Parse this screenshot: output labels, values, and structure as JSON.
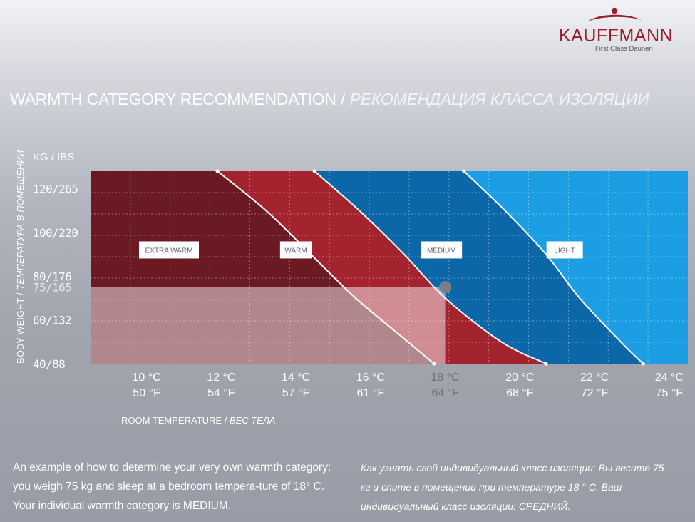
{
  "brand": {
    "name": "KAUFFMANN",
    "tagline": "First Class Daunen",
    "color": "#9b1d2b"
  },
  "heading": {
    "en": "WARMTH CATEGORY RECOMMENDATION /",
    "ru": "РЕКОМЕНДАЦИЯ КЛАССА ИЗОЛЯЦИИ"
  },
  "y_axis_title": {
    "en": "BODY WEIGHT /",
    "ru": "ТЕМПЕРАТУРА В ПОМЕЩЕНИИ"
  },
  "x_axis_title": {
    "en": "ROOM TEMPERATURE /",
    "ru": "ВЕС ТЕЛА"
  },
  "captions": {
    "en": "An example of how to determine your very own warmth category: you weigh 75 kg and sleep at a bedroom tempera-ture of 18° C. Your individual warmth category is MEDIUM.",
    "ru": "Как узнать свой индивидуальный класс изоляции: Вы весите 75 кг и спите в помещении при температуре 18 ° C. Ваш индивидуальный класс изоляции: СРЕДНИЙ."
  },
  "chart_data": {
    "type": "area",
    "x_unit": "°C",
    "y_unit": "kg",
    "y_axis_unit_label": "KG / IBS",
    "xlim": [
      8.5,
      24.5
    ],
    "ylim": [
      40,
      128
    ],
    "x_ticks": [
      {
        "value": 10,
        "c": "10 °C",
        "f": "50 °F"
      },
      {
        "value": 12,
        "c": "12 °C",
        "f": "54 °F"
      },
      {
        "value": 14,
        "c": "14 °C",
        "f": "57 °F"
      },
      {
        "value": 16,
        "c": "16 °C",
        "f": "61 °F"
      },
      {
        "value": 18,
        "c": "18 °C",
        "f": "64 °F",
        "highlight": true
      },
      {
        "value": 20,
        "c": "20 °C",
        "f": "68 °F"
      },
      {
        "value": 22,
        "c": "22 °C",
        "f": "72 °F"
      },
      {
        "value": 24,
        "c": "24 °C",
        "f": "75 °F"
      }
    ],
    "y_ticks": [
      {
        "value": 40,
        "label": "40/88"
      },
      {
        "value": 60,
        "label": "60/132"
      },
      {
        "value": 75,
        "label": "75/165",
        "highlight": true
      },
      {
        "value": 80,
        "label": "80/176"
      },
      {
        "value": 100,
        "label": "100/220"
      },
      {
        "value": 120,
        "label": "120/265"
      }
    ],
    "categories": [
      {
        "name": "EXTRA WARM",
        "color": "#6b1a23",
        "label_x": 10.6,
        "label_y": 92
      },
      {
        "name": "WARM",
        "color": "#a3242f",
        "label_x": 14.0,
        "label_y": 92
      },
      {
        "name": "MEDIUM",
        "color": "#0b67a8",
        "label_x": 17.9,
        "label_y": 92
      },
      {
        "name": "LIGHT",
        "color": "#1b9ee3",
        "label_x": 21.2,
        "label_y": 92
      }
    ],
    "boundaries": [
      {
        "between": "EXTRA WARM / WARM",
        "points": [
          [
            11.9,
            128
          ],
          [
            13.2,
            110
          ],
          [
            14.4,
            90
          ],
          [
            15.6,
            70
          ],
          [
            17.0,
            50
          ],
          [
            17.7,
            40
          ]
        ]
      },
      {
        "between": "WARM / MEDIUM",
        "points": [
          [
            14.5,
            128
          ],
          [
            15.7,
            110
          ],
          [
            16.9,
            90
          ],
          [
            18.0,
            70
          ],
          [
            19.5,
            50
          ],
          [
            20.7,
            40
          ]
        ]
      },
      {
        "between": "MEDIUM / LIGHT",
        "points": [
          [
            18.5,
            128
          ],
          [
            19.6,
            110
          ],
          [
            20.7,
            90
          ],
          [
            21.6,
            70
          ],
          [
            22.7,
            50
          ],
          [
            23.3,
            40
          ]
        ]
      }
    ],
    "example": {
      "temperature_c": 18,
      "weight_kg": 75,
      "result": "MEDIUM"
    }
  }
}
